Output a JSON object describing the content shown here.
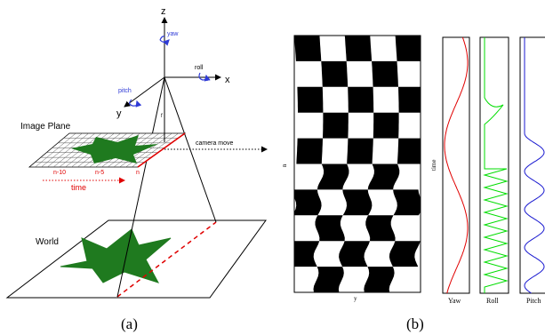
{
  "panel_a": {
    "caption": "(a)",
    "axes": {
      "z": "z",
      "x": "x",
      "y": "y"
    },
    "rotations": {
      "yaw": "yaw",
      "roll": "roll",
      "pitch": "pitch"
    },
    "focal_label": "f",
    "image_plane_label": "Image Plane",
    "camera_move_label": "camera move",
    "row_labels": {
      "n10": "n-10",
      "n5": "n-5",
      "n": "n"
    },
    "time_label": "time",
    "world_label": "World",
    "colors": {
      "object_green": "#1f7a1f",
      "red": "#e00000",
      "rotation_blue": "#2f3bd6",
      "black": "#000000"
    }
  },
  "panel_b": {
    "caption": "(b)",
    "checker_axis_vertical": "n",
    "checker_axis_horizontal": "y",
    "time_axis_label": "time",
    "strips": [
      {
        "name": "Yaw",
        "color": "#e00000"
      },
      {
        "name": "Roll",
        "color": "#00dd00"
      },
      {
        "name": "Pitch",
        "color": "#1a1ad0"
      }
    ]
  }
}
